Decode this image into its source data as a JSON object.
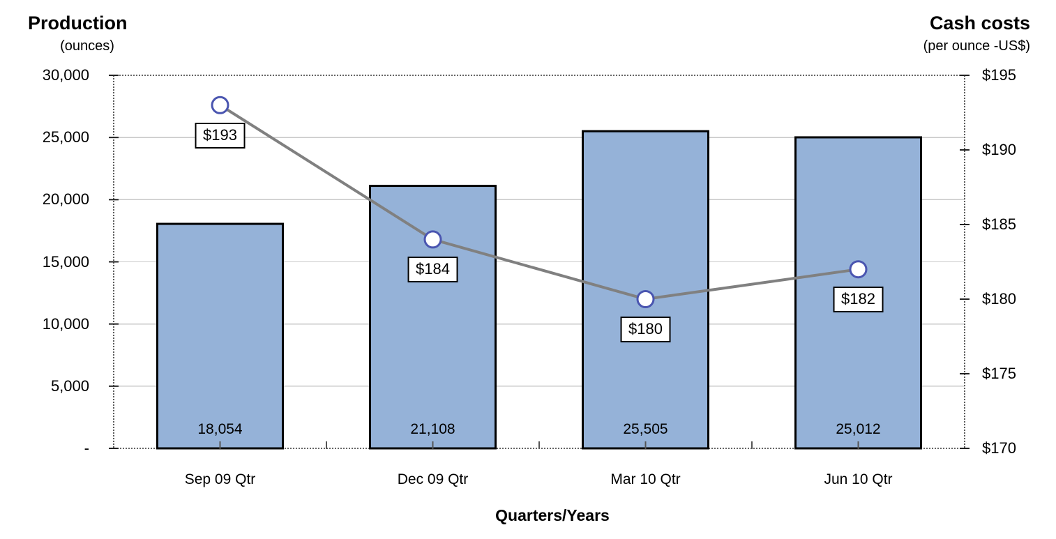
{
  "header": {
    "left_title": "Production",
    "left_subtitle": "(ounces)",
    "right_title": "Cash costs",
    "right_subtitle": "(per ounce -US$)"
  },
  "chart_data": {
    "type": "combo-bar-line",
    "categories": [
      "Sep 09 Qtr",
      "Dec 09 Qtr",
      "Mar 10 Qtr",
      "Jun 10 Qtr"
    ],
    "xlabel": "Quarters/Years",
    "series": [
      {
        "name": "Production (ounces)",
        "type": "bar",
        "axis": "left",
        "values": [
          18054,
          21108,
          25505,
          25012
        ],
        "labels": [
          "18,054",
          "21,108",
          "25,505",
          "25,012"
        ],
        "fill": "#95B2D8",
        "border": "#000000"
      },
      {
        "name": "Cash costs (per ounce - US$)",
        "type": "line",
        "axis": "right",
        "values": [
          193,
          184,
          180,
          182
        ],
        "labels": [
          "$193",
          "$184",
          "$180",
          "$182"
        ],
        "line_color": "#808080",
        "marker": "circle",
        "marker_fill": "#FFFFFF",
        "marker_ring": "#4A55B0"
      }
    ],
    "left_axis": {
      "min": 0,
      "max": 30000,
      "step": 5000,
      "tick_labels": [
        "-",
        "5,000",
        "10,000",
        "15,000",
        "20,000",
        "25,000",
        "30,000"
      ]
    },
    "right_axis": {
      "min": 170,
      "max": 195,
      "step": 5,
      "tick_labels": [
        "$170",
        "$175",
        "$180",
        "$185",
        "$190",
        "$195"
      ]
    },
    "grid": true,
    "gridline_color": "#C9C9C9",
    "border_color": "#333333"
  }
}
